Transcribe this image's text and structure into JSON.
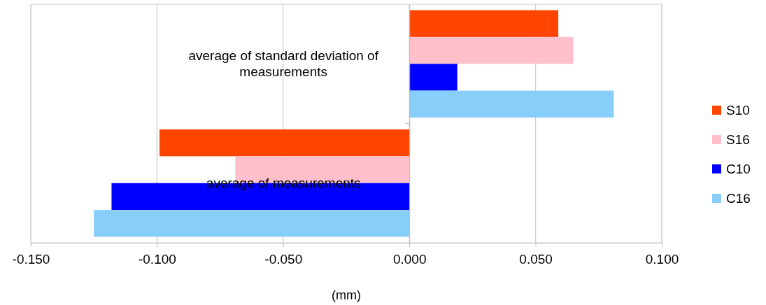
{
  "chart_data": {
    "type": "bar",
    "orientation": "horizontal",
    "xlabel": "(mm)",
    "categories": [
      "average of standard deviation of measurements",
      "average of measurements"
    ],
    "series": [
      {
        "name": "S10",
        "color": "#ff4500",
        "values": [
          0.059,
          -0.099
        ]
      },
      {
        "name": "S16",
        "color": "#ffc0cb",
        "values": [
          0.065,
          -0.069
        ]
      },
      {
        "name": "C10",
        "color": "#0000ff",
        "values": [
          0.019,
          -0.118
        ]
      },
      {
        "name": "C16",
        "color": "#87cefa",
        "values": [
          0.081,
          -0.125
        ]
      }
    ],
    "xlim": [
      -0.15,
      0.1
    ],
    "xticks": [
      {
        "value": -0.15,
        "label": "-0.150"
      },
      {
        "value": -0.1,
        "label": "-0.100"
      },
      {
        "value": -0.05,
        "label": "-0.050"
      },
      {
        "value": 0,
        "label": "0.000"
      },
      {
        "value": 0.05,
        "label": "0.050"
      },
      {
        "value": 0.1,
        "label": "0.100"
      }
    ],
    "grid": "x",
    "legend": "right"
  }
}
